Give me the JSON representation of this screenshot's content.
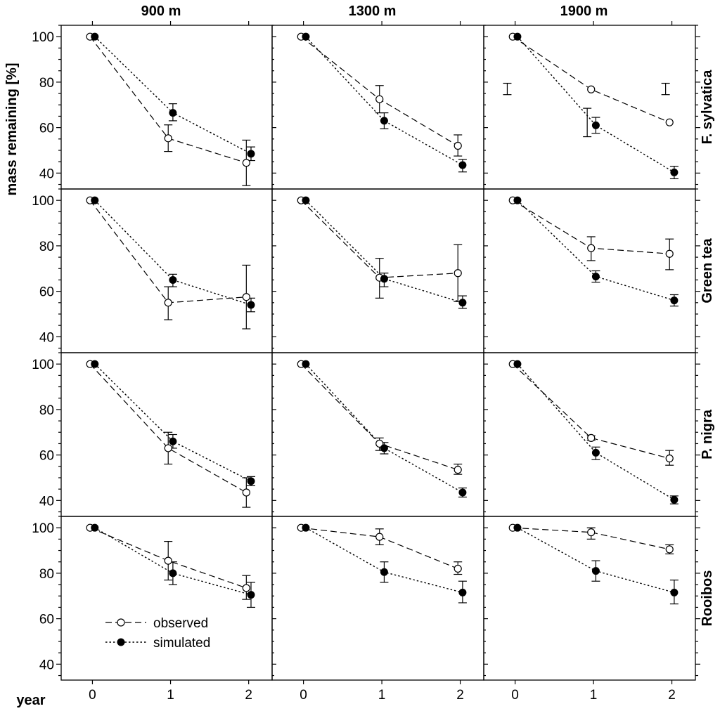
{
  "chart_data": {
    "type": "line",
    "ylabel": "mass remaining [%]",
    "xlabel": "year",
    "ylim": [
      33,
      105
    ],
    "xlim": [
      -0.4,
      2.3
    ],
    "yticks": [
      40,
      60,
      80,
      100
    ],
    "xticks": [
      0,
      1,
      2
    ],
    "columns": [
      "900 m",
      "1300 m",
      "1900 m"
    ],
    "rows": [
      "F. sylvatica",
      "Green tea",
      "P. nigra",
      "Rooibos"
    ],
    "legend": {
      "position": "bottom-left",
      "observed": "observed",
      "simulated": "simulated"
    },
    "panels": [
      {
        "row": "F. sylvatica",
        "col": "900 m",
        "observed": [
          {
            "x": 0,
            "y": 100
          },
          {
            "x": 1,
            "y": 55.3,
            "lo": 49.5,
            "hi": 61.2
          },
          {
            "x": 2,
            "y": 44.5,
            "lo": 34.5,
            "hi": 54.5
          }
        ],
        "simulated": [
          {
            "x": 0,
            "y": 100
          },
          {
            "x": 1,
            "y": 66.5,
            "lo": 63,
            "hi": 70.5
          },
          {
            "x": 2,
            "y": 48.5,
            "lo": 45.5,
            "hi": 51.5
          }
        ]
      },
      {
        "row": "F. sylvatica",
        "col": "1300 m",
        "observed": [
          {
            "x": 0,
            "y": 100
          },
          {
            "x": 1,
            "y": 72.5,
            "lo": 66.5,
            "hi": 78.5
          },
          {
            "x": 2,
            "y": 52,
            "lo": 47.5,
            "hi": 56.8
          }
        ],
        "simulated": [
          {
            "x": 0,
            "y": 100
          },
          {
            "x": 1,
            "y": 63,
            "lo": 59.5,
            "hi": 66.5
          },
          {
            "x": 2,
            "y": 43.5,
            "lo": 40.5,
            "hi": 46
          }
        ]
      },
      {
        "row": "F. sylvatica",
        "col": "1900 m",
        "observed": [
          {
            "x": 0,
            "y": 100
          },
          {
            "x": 1,
            "y": 76.8
          },
          {
            "x": 2,
            "y": 62.3
          }
        ],
        "simulated": [
          {
            "x": 0,
            "y": 100
          },
          {
            "x": 1,
            "y": 61,
            "lo": 57.5,
            "hi": 64.5
          },
          {
            "x": 2,
            "y": 40.3,
            "lo": 37.5,
            "hi": 43
          }
        ],
        "extra_error_bars": [
          {
            "x": -0.1,
            "lo": 74.5,
            "hi": 79.5
          },
          {
            "x": 0.92,
            "lo": 56,
            "hi": 68.5
          },
          {
            "x": 1.92,
            "lo": 74.5,
            "hi": 79.5
          }
        ]
      },
      {
        "row": "Green tea",
        "col": "900 m",
        "observed": [
          {
            "x": 0,
            "y": 100
          },
          {
            "x": 1,
            "y": 55,
            "lo": 47.5,
            "hi": 62
          },
          {
            "x": 2,
            "y": 57.5,
            "lo": 43.5,
            "hi": 71.5
          }
        ],
        "simulated": [
          {
            "x": 0,
            "y": 100
          },
          {
            "x": 1,
            "y": 65,
            "lo": 62,
            "hi": 67.5
          },
          {
            "x": 2,
            "y": 54,
            "lo": 51,
            "hi": 57
          }
        ]
      },
      {
        "row": "Green tea",
        "col": "1300 m",
        "observed": [
          {
            "x": 0,
            "y": 100
          },
          {
            "x": 1,
            "y": 66,
            "lo": 57,
            "hi": 74.5
          },
          {
            "x": 2,
            "y": 68,
            "lo": 55.5,
            "hi": 80.5
          }
        ],
        "simulated": [
          {
            "x": 0,
            "y": 100
          },
          {
            "x": 1,
            "y": 65.5,
            "lo": 62,
            "hi": 68
          },
          {
            "x": 2,
            "y": 55,
            "lo": 52.5,
            "hi": 58
          }
        ]
      },
      {
        "row": "Green tea",
        "col": "1900 m",
        "observed": [
          {
            "x": 0,
            "y": 100
          },
          {
            "x": 1,
            "y": 79,
            "lo": 73.5,
            "hi": 84
          },
          {
            "x": 2,
            "y": 76.5,
            "lo": 69.5,
            "hi": 83
          }
        ],
        "simulated": [
          {
            "x": 0,
            "y": 100
          },
          {
            "x": 1,
            "y": 66.5,
            "lo": 64,
            "hi": 69
          },
          {
            "x": 2,
            "y": 56,
            "lo": 53.5,
            "hi": 58.5
          }
        ]
      },
      {
        "row": "P. nigra",
        "col": "900 m",
        "observed": [
          {
            "x": 0,
            "y": 100
          },
          {
            "x": 1,
            "y": 63,
            "lo": 56,
            "hi": 70
          },
          {
            "x": 2,
            "y": 43.5,
            "lo": 37,
            "hi": 50
          }
        ],
        "simulated": [
          {
            "x": 0,
            "y": 100
          },
          {
            "x": 1,
            "y": 66,
            "lo": 63,
            "hi": 69
          },
          {
            "x": 2,
            "y": 48.5,
            "lo": 46.5,
            "hi": 50.5
          }
        ]
      },
      {
        "row": "P. nigra",
        "col": "1300 m",
        "observed": [
          {
            "x": 0,
            "y": 100
          },
          {
            "x": 1,
            "y": 65,
            "lo": 62,
            "hi": 67.5
          },
          {
            "x": 2,
            "y": 53.5,
            "lo": 51.5,
            "hi": 56
          }
        ],
        "simulated": [
          {
            "x": 0,
            "y": 100
          },
          {
            "x": 1,
            "y": 63,
            "lo": 60.5,
            "hi": 65.5
          },
          {
            "x": 2,
            "y": 43.5,
            "lo": 41.5,
            "hi": 45.5
          }
        ]
      },
      {
        "row": "P. nigra",
        "col": "1900 m",
        "observed": [
          {
            "x": 0,
            "y": 100
          },
          {
            "x": 1,
            "y": 67.5,
            "lo": 66.5,
            "hi": 68.5
          },
          {
            "x": 2,
            "y": 58.5,
            "lo": 55.5,
            "hi": 62
          }
        ],
        "simulated": [
          {
            "x": 0,
            "y": 100
          },
          {
            "x": 1,
            "y": 61,
            "lo": 58,
            "hi": 63.5
          },
          {
            "x": 2,
            "y": 40.3,
            "lo": 38.5,
            "hi": 42
          }
        ]
      },
      {
        "row": "Rooibos",
        "col": "900 m",
        "observed": [
          {
            "x": 0,
            "y": 100
          },
          {
            "x": 1,
            "y": 85.5,
            "lo": 77,
            "hi": 94
          },
          {
            "x": 2,
            "y": 73.5,
            "lo": 68.5,
            "hi": 79
          }
        ],
        "simulated": [
          {
            "x": 0,
            "y": 100
          },
          {
            "x": 1,
            "y": 80,
            "lo": 75,
            "hi": 85
          },
          {
            "x": 2,
            "y": 70.5,
            "lo": 65,
            "hi": 76
          }
        ]
      },
      {
        "row": "Rooibos",
        "col": "1300 m",
        "observed": [
          {
            "x": 0,
            "y": 100
          },
          {
            "x": 1,
            "y": 96,
            "lo": 92.5,
            "hi": 99.5
          },
          {
            "x": 2,
            "y": 82,
            "lo": 79.5,
            "hi": 85
          }
        ],
        "simulated": [
          {
            "x": 0,
            "y": 100
          },
          {
            "x": 1,
            "y": 80.5,
            "lo": 76,
            "hi": 85
          },
          {
            "x": 2,
            "y": 71.5,
            "lo": 67,
            "hi": 76.5
          }
        ]
      },
      {
        "row": "Rooibos",
        "col": "1900 m",
        "observed": [
          {
            "x": 0,
            "y": 100
          },
          {
            "x": 1,
            "y": 98,
            "lo": 95,
            "hi": 100
          },
          {
            "x": 2,
            "y": 90.5,
            "lo": 88.5,
            "hi": 92.5
          }
        ],
        "simulated": [
          {
            "x": 0,
            "y": 100
          },
          {
            "x": 1,
            "y": 81,
            "lo": 76.5,
            "hi": 85.5
          },
          {
            "x": 2,
            "y": 71.5,
            "lo": 66.5,
            "hi": 77
          }
        ]
      }
    ]
  }
}
